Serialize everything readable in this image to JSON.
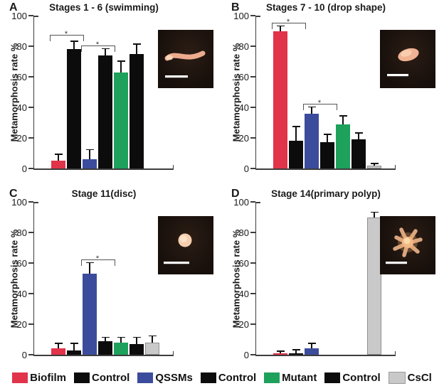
{
  "figure": {
    "palette": {
      "biofilm": "#e13349",
      "control": "#0c0c0c",
      "qssms": "#3c4c9c",
      "mutant": "#1ea15b",
      "cscl": "#c9c9c9"
    },
    "axis_color": "#3d3d3d",
    "y_ticks": [
      0,
      20,
      40,
      60,
      80,
      100
    ],
    "legend": [
      {
        "label": "Biofilm",
        "color": "biofilm"
      },
      {
        "label": "Control",
        "color": "control"
      },
      {
        "label": "QSSMs",
        "color": "qssms"
      },
      {
        "label": "Control",
        "color": "control"
      },
      {
        "label": "Mutant",
        "color": "mutant"
      },
      {
        "label": "Control",
        "color": "control"
      },
      {
        "label": "CsCl",
        "color": "cscl"
      }
    ]
  },
  "chart_data": [
    {
      "type": "bar",
      "panel": "A",
      "title": "Stages 1 - 6 (swimming)",
      "ylabel": "Metamorphosis rate %",
      "ylim": [
        0,
        100
      ],
      "categories": [
        "Biofilm",
        "Control",
        "QSSMs",
        "Control",
        "Mutant",
        "Control"
      ],
      "bars": [
        {
          "slot": 0,
          "color": "biofilm",
          "value": 5,
          "error": 4
        },
        {
          "slot": 1,
          "color": "control",
          "value": 78,
          "error": 5
        },
        {
          "slot": 2,
          "color": "qssms",
          "value": 6,
          "error": 6
        },
        {
          "slot": 3,
          "color": "control",
          "value": 74,
          "error": 4
        },
        {
          "slot": 4,
          "color": "mutant",
          "value": 63,
          "error": 7
        },
        {
          "slot": 5,
          "color": "control",
          "value": 75,
          "error": 6
        }
      ],
      "significance": [
        {
          "from": 0,
          "to": 1,
          "level": 87,
          "label": "*"
        },
        {
          "from": 2,
          "to": 3,
          "level": 80,
          "label": "*"
        }
      ],
      "inset": {
        "organism": "swimming-larva",
        "has_scale_bar": true
      }
    },
    {
      "type": "bar",
      "panel": "B",
      "title": "Stages 7 - 10 (drop shape)",
      "ylabel": "Metamorphosis rate %",
      "ylim": [
        0,
        100
      ],
      "categories": [
        "Biofilm",
        "Control",
        "QSSMs",
        "Control",
        "Mutant",
        "Control",
        "CsCl"
      ],
      "bars": [
        {
          "slot": 0,
          "color": "biofilm",
          "value": 90,
          "error": 3
        },
        {
          "slot": 1,
          "color": "control",
          "value": 18,
          "error": 9
        },
        {
          "slot": 2,
          "color": "qssms",
          "value": 36,
          "error": 4
        },
        {
          "slot": 3,
          "color": "control",
          "value": 17,
          "error": 5
        },
        {
          "slot": 4,
          "color": "mutant",
          "value": 29,
          "error": 5
        },
        {
          "slot": 5,
          "color": "control",
          "value": 19,
          "error": 4
        },
        {
          "slot": 6,
          "color": "cscl",
          "value": 2,
          "error": 1
        }
      ],
      "significance": [
        {
          "from": 0,
          "to": 1,
          "level": 95,
          "label": "*"
        },
        {
          "from": 2,
          "to": 3,
          "level": 42,
          "label": "*"
        }
      ],
      "inset": {
        "organism": "drop-shape-larva",
        "has_scale_bar": true
      }
    },
    {
      "type": "bar",
      "panel": "C",
      "title": "Stage 11(disc)",
      "ylabel": "Metamorphosis rate %",
      "ylim": [
        0,
        100
      ],
      "categories": [
        "Biofilm",
        "Control",
        "QSSMs",
        "Control",
        "Mutant",
        "Control",
        "CsCl"
      ],
      "bars": [
        {
          "slot": 0,
          "color": "biofilm",
          "value": 4,
          "error": 3
        },
        {
          "slot": 1,
          "color": "control",
          "value": 3,
          "error": 4
        },
        {
          "slot": 2,
          "color": "qssms",
          "value": 53,
          "error": 7
        },
        {
          "slot": 3,
          "color": "control",
          "value": 9,
          "error": 2
        },
        {
          "slot": 4,
          "color": "mutant",
          "value": 8,
          "error": 3
        },
        {
          "slot": 5,
          "color": "control",
          "value": 7,
          "error": 4
        },
        {
          "slot": 6,
          "color": "cscl",
          "value": 8,
          "error": 4
        }
      ],
      "significance": [
        {
          "from": 2,
          "to": 3,
          "level": 62,
          "label": "*"
        }
      ],
      "inset": {
        "organism": "disc-larva",
        "has_scale_bar": true
      }
    },
    {
      "type": "bar",
      "panel": "D",
      "title": "Stage 14(primary polyp)",
      "ylabel": "Metamorphosis rate %",
      "ylim": [
        0,
        100
      ],
      "categories": [
        "Biofilm",
        "Control",
        "QSSMs",
        "CsCl"
      ],
      "bars": [
        {
          "slot": 0,
          "color": "biofilm",
          "value": 1,
          "error": 1
        },
        {
          "slot": 1,
          "color": "control",
          "value": 1,
          "error": 2
        },
        {
          "slot": 2,
          "color": "qssms",
          "value": 4,
          "error": 3
        },
        {
          "slot": 6,
          "color": "cscl",
          "value": 90,
          "error": 3
        }
      ],
      "significance": [],
      "inset": {
        "organism": "primary-polyp",
        "has_scale_bar": true
      }
    }
  ]
}
